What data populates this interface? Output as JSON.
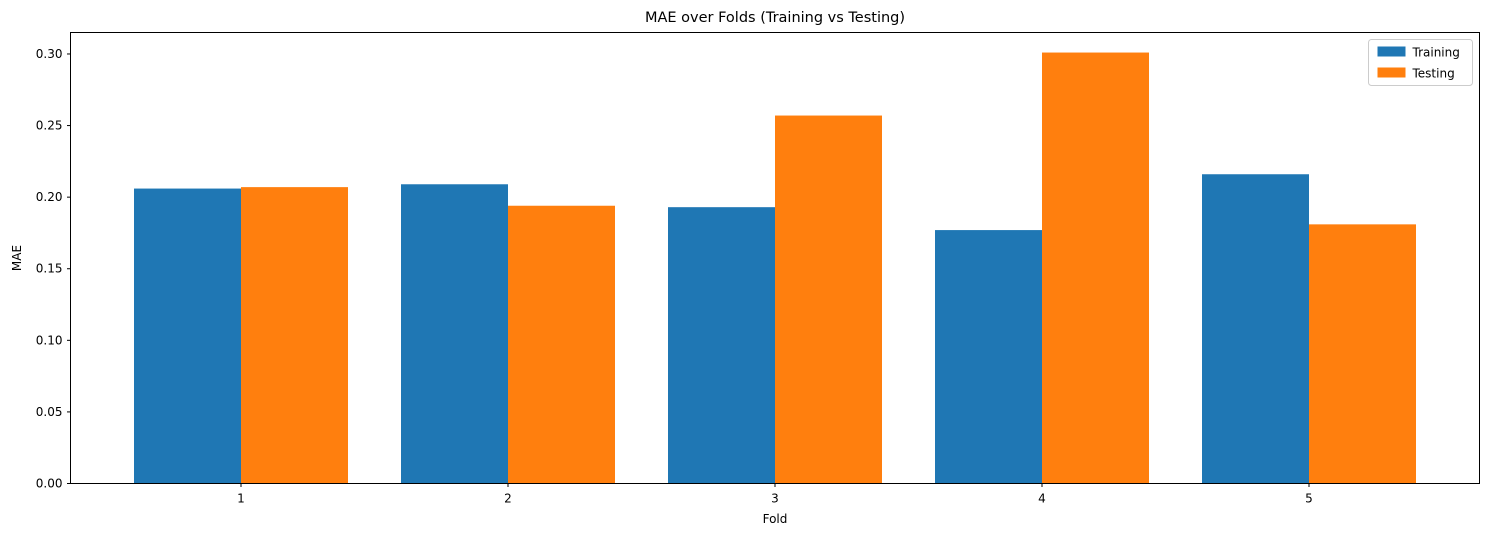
{
  "chart_data": {
    "type": "bar",
    "title": "MAE over Folds (Training vs Testing)",
    "xlabel": "Fold",
    "ylabel": "MAE",
    "categories": [
      "1",
      "2",
      "3",
      "4",
      "5"
    ],
    "series": [
      {
        "name": "Training",
        "color": "#1f77b4",
        "values": [
          0.206,
          0.209,
          0.193,
          0.177,
          0.216
        ]
      },
      {
        "name": "Testing",
        "color": "#ff7f0e",
        "values": [
          0.207,
          0.194,
          0.257,
          0.301,
          0.181
        ]
      }
    ],
    "ylim": [
      0,
      0.315
    ],
    "yticks": [
      0.0,
      0.05,
      0.1,
      0.15,
      0.2,
      0.25,
      0.3
    ],
    "ytick_labels": [
      "0.00",
      "0.05",
      "0.10",
      "0.15",
      "0.20",
      "0.25",
      "0.30"
    ],
    "grid": false,
    "legend_position": "top-right"
  }
}
